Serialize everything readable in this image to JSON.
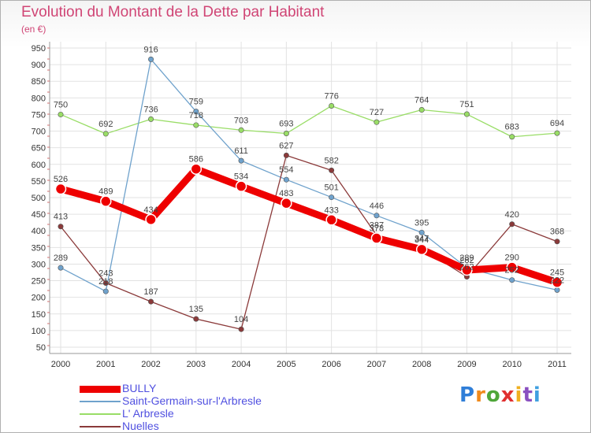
{
  "header": {
    "title": "Evolution du Montant de la Dette par Habitant",
    "unit": "(en €)"
  },
  "logo": {
    "letters": [
      "P",
      "r",
      "o",
      "x",
      "i",
      "t",
      "i"
    ],
    "colors": [
      "#2f7ed8",
      "#f08a1c",
      "#4fa63a",
      "#e03030",
      "#f0b020",
      "#8a4fc0",
      "#40a0e0"
    ]
  },
  "chart_data": {
    "type": "line",
    "categories": [
      "2000",
      "2001",
      "2002",
      "2003",
      "2004",
      "2005",
      "2006",
      "2007",
      "2008",
      "2009",
      "2010",
      "2011"
    ],
    "yticks": [
      50,
      100,
      150,
      200,
      250,
      300,
      350,
      400,
      450,
      500,
      550,
      600,
      650,
      700,
      750,
      800,
      850,
      900,
      950
    ],
    "ylim": [
      50,
      950
    ],
    "grid": true,
    "legend_position": "bottom-left",
    "series": [
      {
        "name": "BULLY",
        "color": "#ee0000",
        "width": 9,
        "values": [
          526,
          489,
          434,
          586,
          534,
          483,
          433,
          378,
          344,
          282,
          290,
          245
        ]
      },
      {
        "name": "Saint-Germain-sur-l'Arbresle",
        "color": "#6fa2cc",
        "width": 1.3,
        "values": [
          289,
          218,
          916,
          759,
          611,
          554,
          501,
          446,
          395,
          289,
          252,
          222
        ]
      },
      {
        "name": "L' Arbresle",
        "color": "#99dd66",
        "width": 1.3,
        "values": [
          750,
          692,
          736,
          718,
          703,
          693,
          776,
          727,
          764,
          751,
          683,
          694
        ]
      },
      {
        "name": "Nuelles",
        "color": "#8b3a3a",
        "width": 1.3,
        "values": [
          413,
          243,
          187,
          135,
          104,
          627,
          582,
          387,
          347,
          262,
          420,
          368
        ]
      }
    ]
  }
}
